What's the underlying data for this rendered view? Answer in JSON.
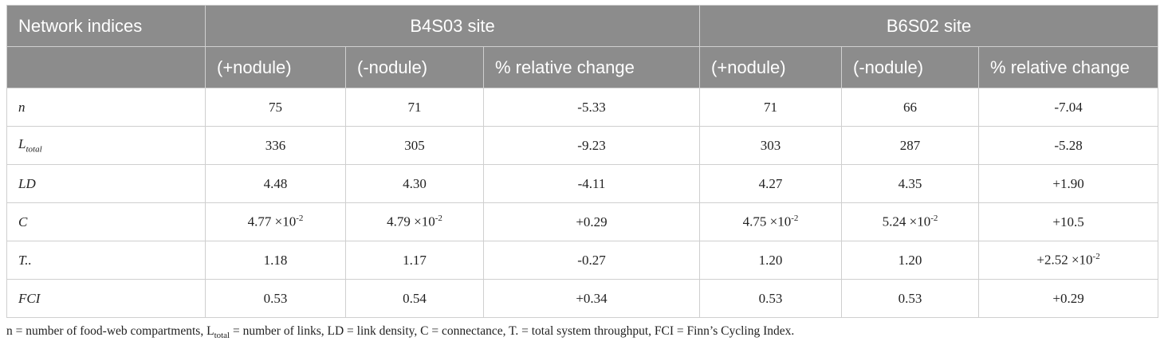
{
  "table": {
    "header": {
      "label": "Network indices",
      "groups": [
        "B4S03 site",
        "B6S02 site"
      ],
      "subheaders": [
        "(+nodule)",
        "(-nodule)",
        "% relative change",
        "(+nodule)",
        "(-nodule)",
        "% relative change"
      ]
    },
    "rows": [
      {
        "label": "n",
        "cells": [
          "75",
          "71",
          "-5.33",
          "71",
          "66",
          "-7.04"
        ]
      },
      {
        "label": {
          "base": "L",
          "sub": "total"
        },
        "cells": [
          "336",
          "305",
          "-9.23",
          "303",
          "287",
          "-5.28"
        ]
      },
      {
        "label": "LD",
        "cells": [
          "4.48",
          "4.30",
          "-4.11",
          "4.27",
          "4.35",
          "+1.90"
        ]
      },
      {
        "label": "C",
        "cells": [
          {
            "base": "4.77 ×10",
            "sup": "-2"
          },
          {
            "base": "4.79 ×10",
            "sup": "-2"
          },
          "+0.29",
          {
            "base": "4.75 ×10",
            "sup": "-2"
          },
          {
            "base": "5.24 ×10",
            "sup": "-2"
          },
          "+10.5"
        ]
      },
      {
        "label": "T..",
        "cells": [
          "1.18",
          "1.17",
          "-0.27",
          "1.20",
          "1.20",
          {
            "base": "+2.52 ×10",
            "sup": "-2"
          }
        ]
      },
      {
        "label": "FCI",
        "cells": [
          "0.53",
          "0.54",
          "+0.34",
          "0.53",
          "0.53",
          "+0.29"
        ]
      }
    ]
  },
  "footnote": {
    "before": "n = number of food-web compartments, L",
    "sub": "total",
    "after": " = number of links, LD = link density, C = connectance, T. = total system throughput, FCI = Finn’s Cycling Index."
  }
}
